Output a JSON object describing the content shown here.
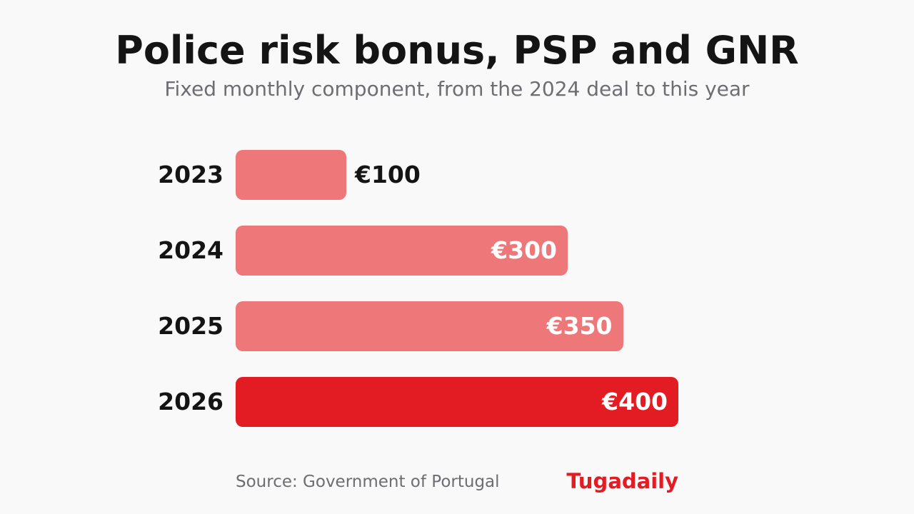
{
  "header": {
    "title": "Police risk bonus, PSP and GNR",
    "subtitle": "Fixed monthly component, from the 2024 deal to this year"
  },
  "footer": {
    "source": "Source: Government of Portugal",
    "brand": "Tugadaily"
  },
  "colors": {
    "bar": "#ee7779",
    "highlight": "#e31b23"
  },
  "chart_data": {
    "type": "bar",
    "orientation": "horizontal",
    "categories": [
      "2023",
      "2024",
      "2025",
      "2026"
    ],
    "values": [
      100,
      300,
      350,
      400
    ],
    "value_labels": [
      "€100",
      "€300",
      "€350",
      "€400"
    ],
    "highlight": "2026",
    "xlim": [
      0,
      400
    ],
    "grid": false,
    "legend": "none",
    "title": "Police risk bonus, PSP and GNR",
    "subtitle": "Fixed monthly component, from the 2024 deal to this year"
  }
}
